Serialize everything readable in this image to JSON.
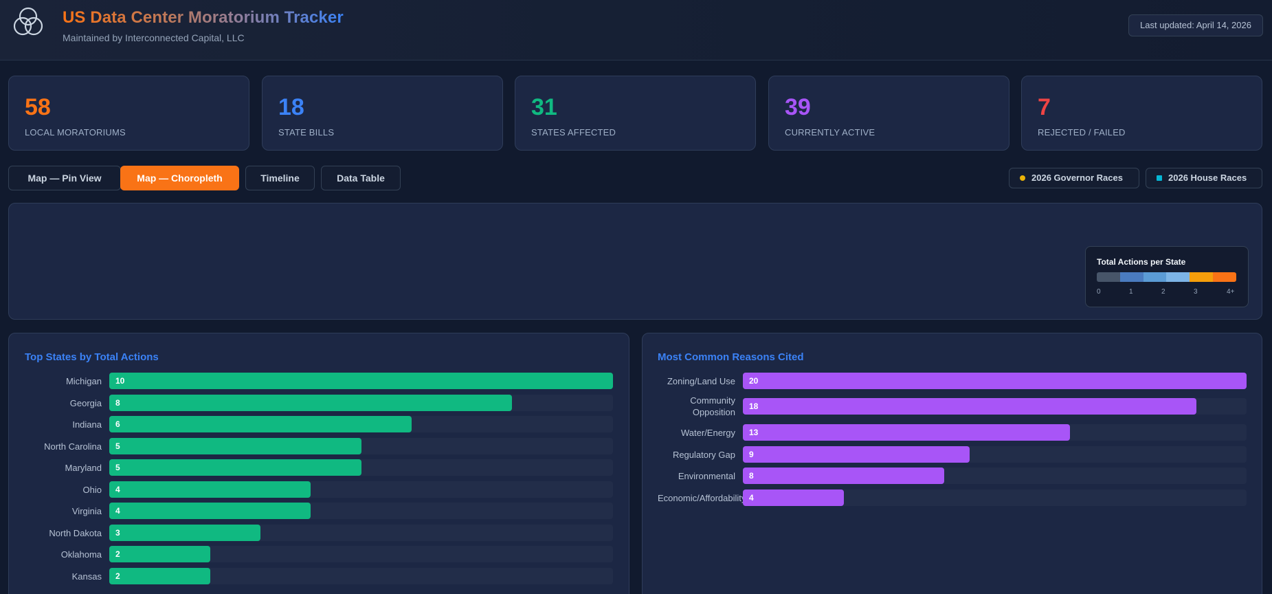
{
  "header": {
    "title": "US Data Center Moratorium Tracker",
    "subtitle": "Maintained by Interconnected Capital, LLC",
    "last_updated": "Last updated: April 14, 2026",
    "logo_icon": "interlocking-circles-logo"
  },
  "stats": [
    {
      "value": "58",
      "label": "LOCAL MORATORIUMS",
      "color": "#f97316"
    },
    {
      "value": "18",
      "label": "STATE BILLS",
      "color": "#3b82f6"
    },
    {
      "value": "31",
      "label": "STATES AFFECTED",
      "color": "#10b981"
    },
    {
      "value": "39",
      "label": "CURRENTLY ACTIVE",
      "color": "#a855f7"
    },
    {
      "value": "7",
      "label": "REJECTED / FAILED",
      "color": "#ef4444"
    }
  ],
  "tabs": [
    {
      "label": "Map — Pin View",
      "active": false
    },
    {
      "label": "Map — Choropleth",
      "active": true
    },
    {
      "label": "Timeline",
      "active": false
    },
    {
      "label": "Data Table",
      "active": false
    }
  ],
  "races": [
    {
      "label": "2026 Governor Races",
      "color": "#eab308",
      "shape": "circle"
    },
    {
      "label": "2026 House Races",
      "color": "#06b6d4",
      "shape": "square"
    }
  ],
  "legend": {
    "title": "Total Actions per State",
    "colors": [
      "#475569",
      "#4a7bbf",
      "#5b9bd5",
      "#7db4e6",
      "#f59e0b",
      "#f97316"
    ],
    "ticks": [
      "0",
      "1",
      "2",
      "3",
      "4+"
    ]
  },
  "colors": {
    "accent": "#f97316",
    "states_bar": "#10b981",
    "reasons_bar": "#a855f7",
    "panel_title": "#3b82f6"
  },
  "chart_data": [
    {
      "type": "bar",
      "orientation": "horizontal",
      "title": "Top States by Total Actions",
      "categories": [
        "Michigan",
        "Georgia",
        "Indiana",
        "North Carolina",
        "Maryland",
        "Ohio",
        "Virginia",
        "North Dakota",
        "Oklahoma",
        "Kansas"
      ],
      "values": [
        10,
        8,
        6,
        5,
        5,
        4,
        4,
        3,
        2,
        2
      ],
      "max": 10
    },
    {
      "type": "bar",
      "orientation": "horizontal",
      "title": "Most Common Reasons Cited",
      "categories": [
        "Zoning/Land Use",
        "Community Opposition",
        "Water/Energy",
        "Regulatory Gap",
        "Environmental",
        "Economic/Affordability"
      ],
      "values": [
        20,
        18,
        13,
        9,
        8,
        4
      ],
      "max": 20
    }
  ]
}
